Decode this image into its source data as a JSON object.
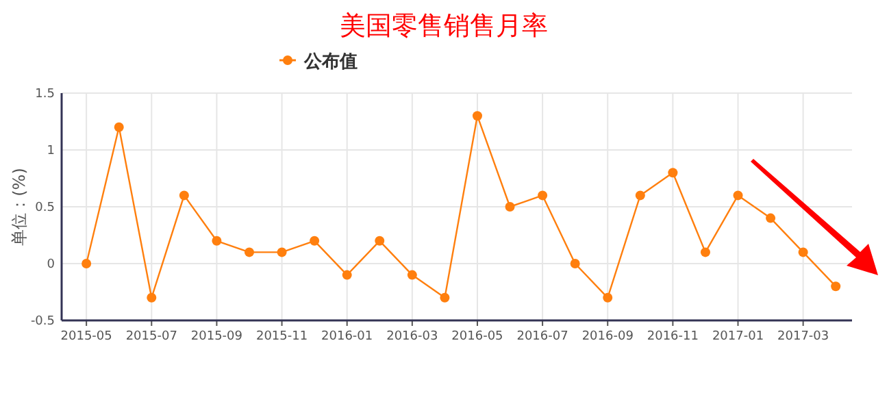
{
  "chart_data": {
    "type": "line",
    "title": "美国零售销售月率",
    "ylabel": "单位：(%)",
    "categories": [
      "2015-05",
      null,
      "2015-07",
      null,
      "2015-09",
      null,
      "2015-11",
      null,
      "2016-01",
      null,
      "2016-03",
      null,
      "2016-05",
      null,
      "2016-07",
      null,
      "2016-09",
      null,
      "2016-11",
      null,
      "2017-01",
      null,
      "2017-03",
      null
    ],
    "series": [
      {
        "name": "公布值",
        "color": "#ff7f0e",
        "values": [
          0,
          1.2,
          -0.3,
          0.6,
          0.2,
          0.1,
          0.1,
          0.2,
          -0.1,
          0.2,
          -0.1,
          -0.3,
          1.3,
          0.5,
          0.6,
          0,
          -0.3,
          0.6,
          0.8,
          0.1,
          0.6,
          0.4,
          0.1,
          -0.2
        ]
      }
    ],
    "ylim": [
      -0.5,
      1.5
    ],
    "yticks": [
      -0.5,
      0,
      0.5,
      1,
      1.5
    ],
    "grid": true,
    "legend": "top",
    "marker": "circle"
  }
}
